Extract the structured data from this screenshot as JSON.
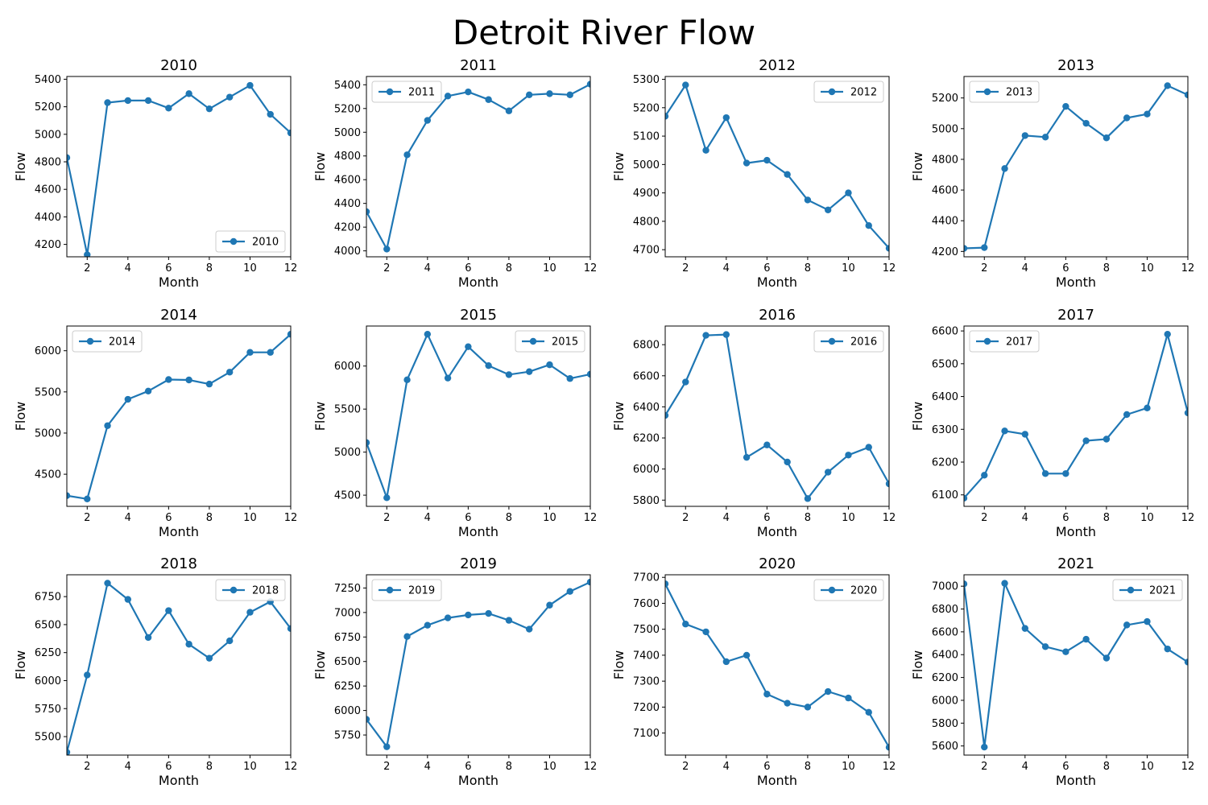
{
  "title": "Detroit River Flow",
  "colors": {
    "line": "#1f77b4",
    "axes": "#000000",
    "legend_border": "#cccccc"
  },
  "chart_data": [
    {
      "type": "line",
      "title": "2010",
      "xlabel": "Month",
      "ylabel": "Flow",
      "xlim": [
        1,
        12
      ],
      "xticks": [
        2,
        4,
        6,
        8,
        10,
        12
      ],
      "ylim": [
        4110,
        5420
      ],
      "yticks": [
        4200,
        4400,
        4600,
        4800,
        5000,
        5200,
        5400
      ],
      "legend": "lower-right",
      "series": [
        {
          "name": "2010",
          "x": [
            1,
            2,
            3,
            4,
            5,
            6,
            7,
            8,
            9,
            10,
            11,
            12
          ],
          "y": [
            4830,
            4125,
            5230,
            5245,
            5245,
            5190,
            5295,
            5185,
            5270,
            5355,
            5145,
            5010
          ]
        }
      ]
    },
    {
      "type": "line",
      "title": "2011",
      "xlabel": "Month",
      "ylabel": "Flow",
      "xlim": [
        1,
        12
      ],
      "xticks": [
        2,
        4,
        6,
        8,
        10,
        12
      ],
      "ylim": [
        3950,
        5470
      ],
      "yticks": [
        4000,
        4200,
        4400,
        4600,
        4800,
        5000,
        5200,
        5400
      ],
      "legend": "upper-left",
      "series": [
        {
          "name": "2011",
          "x": [
            1,
            2,
            3,
            4,
            5,
            6,
            7,
            8,
            9,
            10,
            11,
            12
          ],
          "y": [
            4330,
            4015,
            4810,
            5100,
            5305,
            5340,
            5275,
            5180,
            5315,
            5325,
            5315,
            5405
          ]
        }
      ]
    },
    {
      "type": "line",
      "title": "2012",
      "xlabel": "Month",
      "ylabel": "Flow",
      "xlim": [
        1,
        12
      ],
      "xticks": [
        2,
        4,
        6,
        8,
        10,
        12
      ],
      "ylim": [
        4675,
        5310
      ],
      "yticks": [
        4700,
        4800,
        4900,
        5000,
        5100,
        5200,
        5300
      ],
      "legend": "upper-right",
      "series": [
        {
          "name": "2012",
          "x": [
            1,
            2,
            3,
            4,
            5,
            6,
            7,
            8,
            9,
            10,
            11,
            12
          ],
          "y": [
            5170,
            5280,
            5050,
            5165,
            5005,
            5015,
            4965,
            4875,
            4840,
            4900,
            4785,
            4705
          ]
        }
      ]
    },
    {
      "type": "line",
      "title": "2013",
      "xlabel": "Month",
      "ylabel": "Flow",
      "xlim": [
        1,
        12
      ],
      "xticks": [
        2,
        4,
        6,
        8,
        10,
        12
      ],
      "ylim": [
        4165,
        5340
      ],
      "yticks": [
        4200,
        4400,
        4600,
        4800,
        5000,
        5200
      ],
      "legend": "upper-left",
      "series": [
        {
          "name": "2013",
          "x": [
            1,
            2,
            3,
            4,
            5,
            6,
            7,
            8,
            9,
            10,
            11,
            12
          ],
          "y": [
            4220,
            4225,
            4740,
            4955,
            4945,
            5145,
            5035,
            4940,
            5070,
            5095,
            5280,
            5220
          ]
        }
      ]
    },
    {
      "type": "line",
      "title": "2014",
      "xlabel": "Month",
      "ylabel": "Flow",
      "xlim": [
        1,
        12
      ],
      "xticks": [
        2,
        4,
        6,
        8,
        10,
        12
      ],
      "ylim": [
        4110,
        6300
      ],
      "yticks": [
        4500,
        5000,
        5500,
        6000
      ],
      "legend": "upper-left",
      "series": [
        {
          "name": "2014",
          "x": [
            1,
            2,
            3,
            4,
            5,
            6,
            7,
            8,
            9,
            10,
            11,
            12
          ],
          "y": [
            4240,
            4200,
            5090,
            5410,
            5510,
            5650,
            5645,
            5595,
            5740,
            5980,
            5980,
            6200
          ]
        }
      ]
    },
    {
      "type": "line",
      "title": "2015",
      "xlabel": "Month",
      "ylabel": "Flow",
      "xlim": [
        1,
        12
      ],
      "xticks": [
        2,
        4,
        6,
        8,
        10,
        12
      ],
      "ylim": [
        4370,
        6465
      ],
      "yticks": [
        4500,
        5000,
        5500,
        6000
      ],
      "legend": "upper-right",
      "series": [
        {
          "name": "2015",
          "x": [
            1,
            2,
            3,
            4,
            5,
            6,
            7,
            8,
            9,
            10,
            11,
            12
          ],
          "y": [
            5110,
            4470,
            5840,
            6370,
            5860,
            6225,
            6005,
            5900,
            5935,
            6015,
            5855,
            5905
          ]
        }
      ]
    },
    {
      "type": "line",
      "title": "2016",
      "xlabel": "Month",
      "ylabel": "Flow",
      "xlim": [
        1,
        12
      ],
      "xticks": [
        2,
        4,
        6,
        8,
        10,
        12
      ],
      "ylim": [
        5760,
        6920
      ],
      "yticks": [
        5800,
        6000,
        6200,
        6400,
        6600,
        6800
      ],
      "legend": "upper-right",
      "series": [
        {
          "name": "2016",
          "x": [
            1,
            2,
            3,
            4,
            5,
            6,
            7,
            8,
            9,
            10,
            11,
            12
          ],
          "y": [
            6345,
            6560,
            6860,
            6865,
            6075,
            6155,
            6045,
            5810,
            5980,
            6090,
            6140,
            5905
          ]
        }
      ]
    },
    {
      "type": "line",
      "title": "2017",
      "xlabel": "Month",
      "ylabel": "Flow",
      "xlim": [
        1,
        12
      ],
      "xticks": [
        2,
        4,
        6,
        8,
        10,
        12
      ],
      "ylim": [
        6065,
        6615
      ],
      "yticks": [
        6100,
        6200,
        6300,
        6400,
        6500,
        6600
      ],
      "legend": "upper-left",
      "series": [
        {
          "name": "2017",
          "x": [
            1,
            2,
            3,
            4,
            5,
            6,
            7,
            8,
            9,
            10,
            11,
            12
          ],
          "y": [
            6090,
            6160,
            6295,
            6285,
            6165,
            6165,
            6265,
            6270,
            6345,
            6365,
            6590,
            6350
          ]
        }
      ]
    },
    {
      "type": "line",
      "title": "2018",
      "xlabel": "Month",
      "ylabel": "Flow",
      "xlim": [
        1,
        12
      ],
      "xticks": [
        2,
        4,
        6,
        8,
        10,
        12
      ],
      "ylim": [
        5335,
        6945
      ],
      "yticks": [
        5500,
        5750,
        6000,
        6250,
        6500,
        6750
      ],
      "legend": "upper-right",
      "series": [
        {
          "name": "2018",
          "x": [
            1,
            2,
            3,
            4,
            5,
            6,
            7,
            8,
            9,
            10,
            11,
            12
          ],
          "y": [
            5360,
            6050,
            6870,
            6725,
            6385,
            6625,
            6325,
            6200,
            6355,
            6610,
            6705,
            6465
          ]
        }
      ]
    },
    {
      "type": "line",
      "title": "2019",
      "xlabel": "Month",
      "ylabel": "Flow",
      "xlim": [
        1,
        12
      ],
      "xticks": [
        2,
        4,
        6,
        8,
        10,
        12
      ],
      "ylim": [
        5545,
        7385
      ],
      "yticks": [
        5750,
        6000,
        6250,
        6500,
        6750,
        7000,
        7250
      ],
      "legend": "upper-left",
      "series": [
        {
          "name": "2019",
          "x": [
            1,
            2,
            3,
            4,
            5,
            6,
            7,
            8,
            9,
            10,
            11,
            12
          ],
          "y": [
            5910,
            5630,
            6755,
            6870,
            6945,
            6975,
            6990,
            6920,
            6830,
            7075,
            7215,
            7310
          ]
        }
      ]
    },
    {
      "type": "line",
      "title": "2020",
      "xlabel": "Month",
      "ylabel": "Flow",
      "xlim": [
        1,
        12
      ],
      "xticks": [
        2,
        4,
        6,
        8,
        10,
        12
      ],
      "ylim": [
        7015,
        7710
      ],
      "yticks": [
        7100,
        7200,
        7300,
        7400,
        7500,
        7600,
        7700
      ],
      "legend": "upper-right",
      "series": [
        {
          "name": "2020",
          "x": [
            1,
            2,
            3,
            4,
            5,
            6,
            7,
            8,
            9,
            10,
            11,
            12
          ],
          "y": [
            7675,
            7520,
            7490,
            7375,
            7400,
            7250,
            7215,
            7200,
            7260,
            7235,
            7180,
            7045
          ]
        }
      ]
    },
    {
      "type": "line",
      "title": "2021",
      "xlabel": "Month",
      "ylabel": "Flow",
      "xlim": [
        1,
        12
      ],
      "xticks": [
        2,
        4,
        6,
        8,
        10,
        12
      ],
      "ylim": [
        5520,
        7100
      ],
      "yticks": [
        5600,
        5800,
        6000,
        6200,
        6400,
        6600,
        6800,
        7000
      ],
      "legend": "upper-right",
      "series": [
        {
          "name": "2021",
          "x": [
            1,
            2,
            3,
            4,
            5,
            6,
            7,
            8,
            9,
            10,
            11,
            12
          ],
          "y": [
            7020,
            5590,
            7025,
            6630,
            6470,
            6425,
            6535,
            6370,
            6660,
            6690,
            6450,
            6335
          ]
        }
      ]
    }
  ]
}
